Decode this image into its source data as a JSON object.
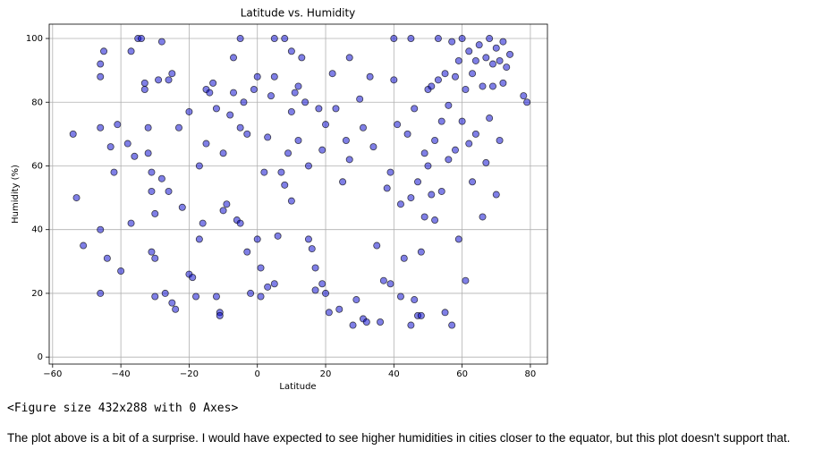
{
  "chart_data": {
    "type": "scatter",
    "title": "Latitude vs. Humidity",
    "xlabel": "Latitude",
    "ylabel": "Humidity (%)",
    "color": "#0000cd",
    "edgecolor": "#000000",
    "grid": true,
    "xlim": [
      -61,
      85
    ],
    "ylim": [
      -2.2,
      104.5
    ],
    "xticks": [
      {
        "value": -60,
        "label": "−60"
      },
      {
        "value": -40,
        "label": "−40"
      },
      {
        "value": -20,
        "label": "−20"
      },
      0,
      20,
      40,
      60,
      80
    ],
    "yticks": [
      0,
      20,
      40,
      60,
      80,
      100
    ],
    "x": [
      -54,
      -53,
      -51,
      -46,
      -46,
      -45,
      -46,
      -46,
      -46,
      -44,
      -43,
      -42,
      -41,
      -40,
      -38,
      -37,
      -37,
      -36,
      -35,
      -34,
      -33,
      -33,
      -32,
      -32,
      -31,
      -31,
      -30,
      -31,
      -30,
      -30,
      -29,
      -28,
      -28,
      -27,
      -26,
      -26,
      -25,
      -25,
      -24,
      -23,
      -22,
      -20,
      -20,
      -19,
      -18,
      -17,
      -17,
      -16,
      -15,
      -15,
      -14,
      -13,
      -12,
      -12,
      -11,
      -11,
      -10,
      -10,
      -9,
      -8,
      -7,
      -7,
      -6,
      -5,
      -5,
      -4,
      -3,
      -3,
      -2,
      -1,
      0,
      0,
      1,
      1,
      2,
      3,
      3,
      4,
      5,
      5,
      6,
      7,
      8,
      8,
      9,
      10,
      10,
      11,
      12,
      12,
      13,
      14,
      15,
      15,
      16,
      17,
      17,
      18,
      19,
      19,
      20,
      20,
      21,
      22,
      23,
      24,
      25,
      26,
      27,
      27,
      28,
      29,
      30,
      31,
      31,
      32,
      33,
      34,
      35,
      36,
      37,
      38,
      39,
      39,
      40,
      41,
      42,
      42,
      43,
      44,
      45,
      45,
      46,
      46,
      47,
      47,
      48,
      48,
      49,
      49,
      50,
      50,
      51,
      51,
      52,
      52,
      53,
      53,
      54,
      54,
      55,
      55,
      56,
      56,
      57,
      57,
      58,
      58,
      59,
      59,
      60,
      60,
      61,
      61,
      62,
      62,
      63,
      63,
      64,
      64,
      65,
      66,
      66,
      67,
      67,
      68,
      68,
      69,
      69,
      70,
      70,
      71,
      71,
      72,
      72,
      73,
      74,
      78,
      79,
      5,
      -5,
      10,
      40,
      45
    ],
    "values": [
      70,
      50,
      35,
      92,
      88,
      96,
      72,
      40,
      20,
      31,
      66,
      58,
      73,
      27,
      67,
      42,
      96,
      63,
      100,
      100,
      86,
      84,
      72,
      64,
      58,
      52,
      45,
      33,
      31,
      19,
      87,
      56,
      99,
      20,
      52,
      87,
      89,
      17,
      15,
      72,
      47,
      77,
      26,
      25,
      19,
      60,
      37,
      42,
      67,
      84,
      83,
      86,
      78,
      19,
      14,
      13,
      64,
      46,
      48,
      76,
      83,
      94,
      43,
      72,
      42,
      80,
      70,
      33,
      20,
      84,
      88,
      37,
      28,
      19,
      58,
      69,
      22,
      82,
      23,
      88,
      38,
      58,
      100,
      54,
      64,
      77,
      49,
      83,
      85,
      68,
      94,
      80,
      60,
      37,
      34,
      28,
      21,
      78,
      65,
      23,
      73,
      20,
      14,
      89,
      78,
      15,
      55,
      68,
      94,
      62,
      10,
      18,
      81,
      72,
      12,
      11,
      88,
      66,
      35,
      11,
      24,
      53,
      58,
      23,
      87,
      73,
      48,
      19,
      31,
      70,
      50,
      10,
      78,
      18,
      13,
      55,
      33,
      13,
      64,
      44,
      84,
      60,
      85,
      51,
      68,
      43,
      87,
      100,
      74,
      52,
      89,
      14,
      79,
      62,
      99,
      10,
      88,
      65,
      93,
      37,
      100,
      74,
      84,
      24,
      96,
      67,
      89,
      55,
      93,
      70,
      98,
      85,
      44,
      94,
      61,
      100,
      75,
      92,
      85,
      97,
      51,
      93,
      68,
      99,
      86,
      91,
      95,
      82,
      80,
      100,
      100,
      96,
      100,
      100
    ]
  },
  "notes": {
    "figure_repr": "<Figure size 432x288 with 0 Axes>",
    "paragraph": "The plot above is a bit of a surprise. I would have expected to see higher humidities in cities closer to the equator, but this plot doesn't support that."
  }
}
